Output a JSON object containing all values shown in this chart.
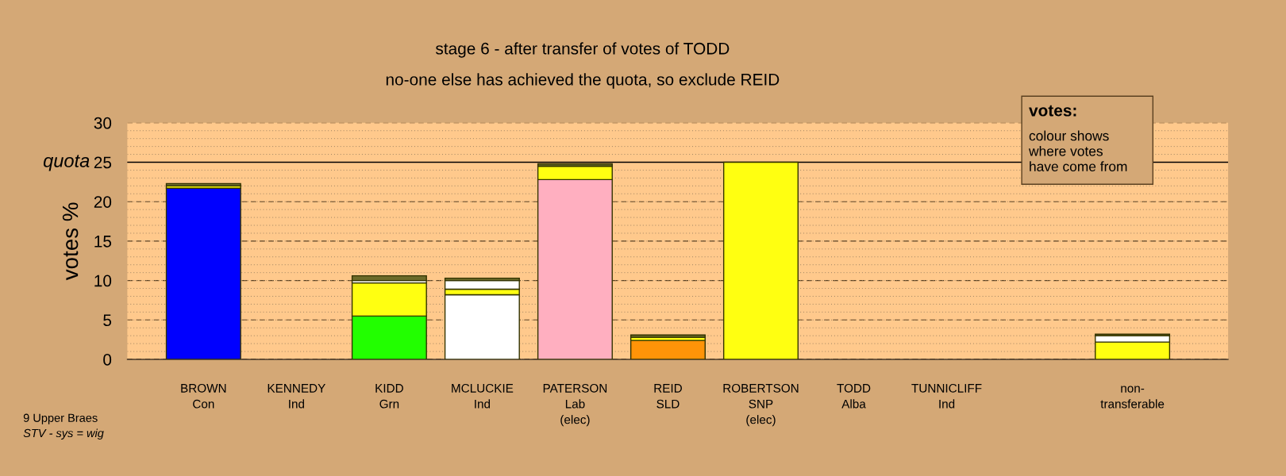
{
  "chart_data": {
    "type": "bar",
    "stacked": true,
    "title": "stage 6 - after transfer of votes of TODD",
    "subtitle": "no-one else has achieved the quota, so exclude REID",
    "ylabel": "votes %",
    "categories": [
      "BROWN\nCon",
      "KENNEDY\nInd",
      "KIDD\nGrn",
      "MCLUCKIE\nInd",
      "PATERSON\nLab\n(elec)",
      "REID\nSLD",
      "ROBERTSON\nSNP\n(elec)",
      "TODD\nAlba",
      "TUNNICLIFF\nInd",
      null,
      "non-\ntransferable"
    ],
    "series": [
      {
        "colors": [
          "#0000ff",
          "#0000ff",
          "#22ff00",
          "#ffffff",
          "#ffafc0",
          "#ff9408",
          "#ffff11",
          "#888888",
          "#888888",
          "#888888",
          "#ffff11"
        ],
        "values": [
          21.7,
          null,
          5.5,
          8.2,
          22.8,
          2.4,
          25.0,
          null,
          null,
          null,
          2.2
        ]
      },
      {
        "color": "#ffff11",
        "values": [
          0.3,
          null,
          4.2,
          0.7,
          1.7,
          0.4,
          null,
          null,
          null,
          null,
          null
        ]
      },
      {
        "color": "#ffffff",
        "values": [
          null,
          null,
          0.3,
          1.1,
          null,
          null,
          null,
          null,
          null,
          null,
          0.8
        ]
      },
      {
        "color": "#6b6b2a",
        "values": [
          0.3,
          null,
          0.6,
          0.3,
          0.3,
          0.3,
          null,
          null,
          null,
          null,
          0.2
        ]
      }
    ],
    "ylim": [
      0,
      30
    ],
    "yticks": [
      0,
      5,
      10,
      15,
      20,
      25,
      30
    ],
    "grid": "y",
    "ref_lines": [
      {
        "axis": "y",
        "value": 25,
        "label": "quota",
        "color": "#000000",
        "line_style": "solid"
      }
    ],
    "annotations": [
      "votes:",
      "colour shows\nwhere votes\nhave come from",
      "9 Upper Braes",
      "STV - sys = wig"
    ]
  }
}
